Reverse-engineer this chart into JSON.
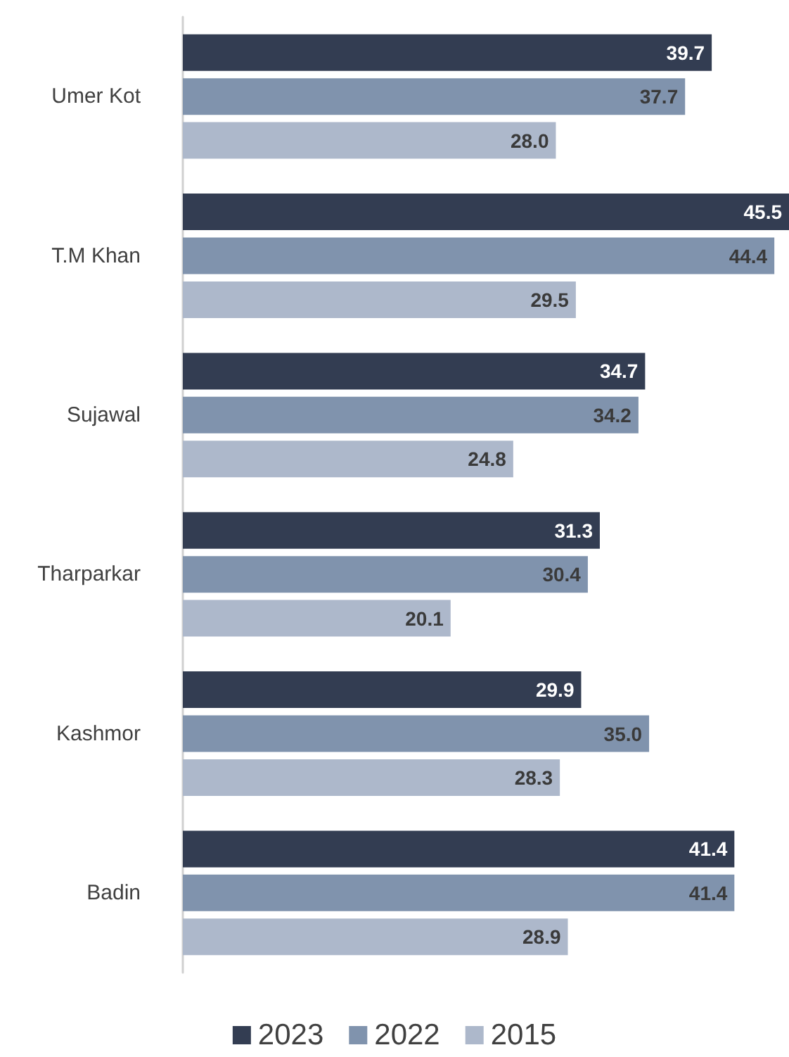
{
  "chart_data": {
    "type": "bar",
    "orientation": "horizontal",
    "categories": [
      "Umer Kot",
      "T.M Khan",
      "Sujawal",
      "Tharparkar",
      "Kashmor",
      "Badin"
    ],
    "series": [
      {
        "name": "2023",
        "color": "#333d52",
        "values": [
          39.7,
          45.5,
          34.7,
          31.3,
          29.9,
          41.4
        ],
        "value_labels": [
          "39.7",
          "45.5",
          "34.7",
          "31.3",
          "29.9",
          "41.4"
        ]
      },
      {
        "name": "2022",
        "color": "#8093ad",
        "values": [
          37.7,
          44.4,
          34.2,
          30.4,
          35.0,
          41.4
        ],
        "value_labels": [
          "37.7",
          "44.4",
          "34.2",
          "30.4",
          "35.0",
          "41.4"
        ]
      },
      {
        "name": "2015",
        "color": "#adb8cb",
        "values": [
          28.0,
          29.5,
          24.8,
          20.1,
          28.3,
          28.9
        ],
        "value_labels": [
          "28.0",
          "29.5",
          "24.8",
          "20.1",
          "28.3",
          "28.9"
        ]
      }
    ],
    "legend": "bottom",
    "grid": false
  }
}
